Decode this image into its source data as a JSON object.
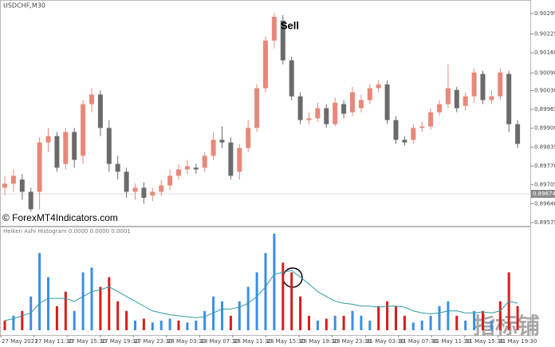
{
  "chart_data": [
    {
      "type": "candlestick",
      "title": "USDCHF,M30",
      "annotation": "Sell",
      "watermark": "© ForexMT4Indicators.com",
      "open": [
        0.89695,
        0.89709,
        0.89723,
        0.89681,
        0.89681,
        0.89851,
        0.89873,
        0.89777,
        0.89887,
        0.89805,
        0.89983,
        0.90016,
        0.89901,
        0.89777,
        0.8975,
        0.89681,
        0.89695,
        0.89668,
        0.89681,
        0.89703,
        0.89736,
        0.89758,
        0.89764,
        0.89764,
        0.89805,
        0.8986,
        0.89851,
        0.8975,
        0.89832,
        0.89901,
        0.90038,
        0.90202,
        0.90271,
        0.90134,
        0.9001,
        0.89928,
        0.89934,
        0.89969,
        0.89914,
        0.89983,
        0.89955,
        0.89969,
        0.89997,
        0.90038,
        0.90051,
        0.89928,
        0.8986,
        0.8986,
        0.89901,
        0.89906,
        0.89955,
        0.89983,
        0.90032,
        0.89977,
        0.9001,
        0.90087,
        0.89997,
        0.9001,
        0.90087,
        0.89914
      ],
      "high": [
        0.89736,
        0.89758,
        0.89742,
        0.89695,
        0.89868,
        0.89901,
        0.89887,
        0.89901,
        0.89901,
        0.89997,
        0.90038,
        0.90032,
        0.89928,
        0.89805,
        0.89764,
        0.89709,
        0.89714,
        0.89695,
        0.89723,
        0.89758,
        0.89777,
        0.89791,
        0.89777,
        0.89818,
        0.89887,
        0.89906,
        0.89868,
        0.89846,
        0.89928,
        0.90051,
        0.90216,
        0.90298,
        0.9029,
        0.90147,
        0.90024,
        0.89955,
        0.89988,
        0.89983,
        0.90005,
        0.89997,
        0.90043,
        0.90016,
        0.90051,
        0.90065,
        0.90065,
        0.89942,
        0.89873,
        0.89914,
        0.89922,
        0.89969,
        0.89997,
        0.9012,
        0.90043,
        0.90024,
        0.90106,
        0.90098,
        0.90032,
        0.90106,
        0.90098,
        0.89928
      ],
      "low": [
        0.89668,
        0.89681,
        0.89654,
        0.89613,
        0.89621,
        0.89818,
        0.8975,
        0.89758,
        0.89764,
        0.89777,
        0.89955,
        0.89873,
        0.8975,
        0.89723,
        0.8966,
        0.89654,
        0.8964,
        0.89649,
        0.89668,
        0.89687,
        0.89723,
        0.89742,
        0.89742,
        0.8975,
        0.89791,
        0.89832,
        0.89723,
        0.89723,
        0.89818,
        0.89887,
        0.90024,
        0.90175,
        0.9012,
        0.89997,
        0.89914,
        0.89914,
        0.89922,
        0.89901,
        0.89906,
        0.89934,
        0.89942,
        0.89955,
        0.89983,
        0.90024,
        0.89914,
        0.89846,
        0.8984,
        0.89846,
        0.89887,
        0.89895,
        0.89942,
        0.89969,
        0.89955,
        0.89961,
        0.89988,
        0.89983,
        0.89983,
        0.89997,
        0.89887,
        0.89832
      ],
      "close": [
        0.89709,
        0.89736,
        0.89681,
        0.89621,
        0.89851,
        0.89873,
        0.89764,
        0.89887,
        0.89791,
        0.89983,
        0.90016,
        0.89901,
        0.89777,
        0.8975,
        0.89681,
        0.89695,
        0.8966,
        0.89681,
        0.89703,
        0.89736,
        0.89758,
        0.89769,
        0.89758,
        0.89805,
        0.8986,
        0.89851,
        0.89736,
        0.89832,
        0.89901,
        0.90038,
        0.90202,
        0.90284,
        0.90134,
        0.9001,
        0.89928,
        0.89934,
        0.89969,
        0.89914,
        0.89988,
        0.8995,
        0.90024,
        0.89997,
        0.90038,
        0.90051,
        0.89928,
        0.8986,
        0.89851,
        0.89901,
        0.89906,
        0.89955,
        0.89983,
        0.90038,
        0.89969,
        0.9001,
        0.90092,
        0.89997,
        0.9001,
        0.90092,
        0.89914,
        0.89846
      ],
      "up_color": "#e8887a",
      "down_color": "#6b6b6b",
      "ylim": [
        0.89564,
        0.90339
      ],
      "yticks": [
        0.90295,
        0.90225,
        {
          "value": 0.9016,
          "label": "0.90160"
        },
        {
          "value": 0.9009,
          "label": "0.90090"
        },
        {
          "value": 0.9003,
          "label": "0.90030"
        },
        0.89965,
        {
          "value": 0.899,
          "label": "0.89900"
        },
        0.89835,
        {
          "value": 0.8977,
          "label": "0.89770"
        },
        0.89705,
        {
          "value": 0.8964,
          "label": "0.89640"
        },
        0.89575
      ],
      "current_price": 0.89674
    },
    {
      "type": "bar",
      "title": "Heiken Ashi Histogram 0.0000 0.0000 0.0001",
      "values": [
        10,
        15,
        20,
        35,
        80,
        55,
        25,
        40,
        20,
        60,
        65,
        45,
        55,
        30,
        20,
        10,
        12,
        8,
        10,
        12,
        10,
        8,
        10,
        20,
        35,
        30,
        15,
        30,
        45,
        60,
        80,
        100,
        70,
        60,
        35,
        15,
        10,
        12,
        15,
        15,
        20,
        15,
        10,
        25,
        30,
        25,
        15,
        8,
        10,
        15,
        25,
        30,
        15,
        10,
        20,
        20,
        10,
        30,
        60,
        25
      ],
      "colors": [
        "#d91c1c",
        "#3a8ee6",
        "#d91c1c",
        "#3a8ee6",
        "#3a8ee6",
        "#3a8ee6",
        "#d91c1c",
        "#d91c1c",
        "#3a8ee6",
        "#3a8ee6",
        "#3a8ee6",
        "#d91c1c",
        "#d91c1c",
        "#d91c1c",
        "#d91c1c",
        "#3a8ee6",
        "#d91c1c",
        "#3a8ee6",
        "#3a8ee6",
        "#3a8ee6",
        "#d91c1c",
        "#3a8ee6",
        "#3a8ee6",
        "#3a8ee6",
        "#3a8ee6",
        "#3a8ee6",
        "#d91c1c",
        "#3a8ee6",
        "#3a8ee6",
        "#3a8ee6",
        "#3a8ee6",
        "#3a8ee6",
        "#d91c1c",
        "#d91c1c",
        "#d91c1c",
        "#d91c1c",
        "#3a8ee6",
        "#d91c1c",
        "#3a8ee6",
        "#d91c1c",
        "#3a8ee6",
        "#3a8ee6",
        "#3a8ee6",
        "#d91c1c",
        "#d91c1c",
        "#d91c1c",
        "#d91c1c",
        "#3a8ee6",
        "#3a8ee6",
        "#3a8ee6",
        "#3a8ee6",
        "#3a8ee6",
        "#d91c1c",
        "#3a8ee6",
        "#3a8ee6",
        "#d91c1c",
        "#3a8ee6",
        "#d91c1c",
        "#d91c1c",
        "#d91c1c"
      ],
      "signal": {
        "color": "#2b9aa3",
        "values": [
          10,
          12,
          15,
          18,
          28,
          33,
          33,
          33,
          30,
          35,
          40,
          42,
          45,
          40,
          35,
          30,
          25,
          20,
          18,
          16,
          15,
          14,
          13,
          14,
          18,
          22,
          22,
          24,
          28,
          35,
          45,
          58,
          60,
          62,
          55,
          48,
          40,
          35,
          30,
          28,
          27,
          25,
          25,
          24,
          25,
          25,
          24,
          20,
          18,
          17,
          18,
          20,
          20,
          18,
          18,
          19,
          18,
          20,
          30,
          28
        ]
      },
      "ylim": [
        0,
        100
      ],
      "x_labels": [
        "27 May 2021",
        "27 May 11:30",
        "27 May 15:30",
        "27 May 19:30",
        "27 May 23:30",
        "28 May 03:30",
        "28 May 07:30",
        "28 May 11:30",
        "28 May 15:30",
        "28 May 19:30",
        "28 May 23:30",
        "31 May 03:30",
        "31 May 07:30",
        "31 May 11:30",
        "31 May 15:30",
        "31 May 19:30"
      ]
    }
  ],
  "watermark": "指标铺"
}
